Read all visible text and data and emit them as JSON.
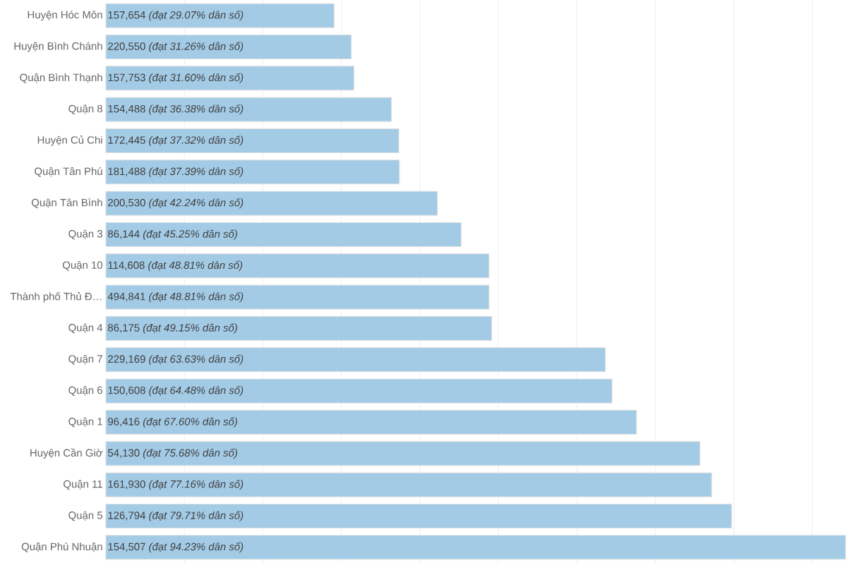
{
  "chart_data": {
    "type": "bar",
    "orientation": "horizontal",
    "color": "#a3cbe6",
    "grid": "x",
    "tick_labels": "y",
    "xlim": [
      0,
      94.23
    ],
    "xticks": [
      {
        "value": 10,
        "label": null
      },
      {
        "value": 20,
        "label": null
      },
      {
        "value": 30,
        "label": null
      },
      {
        "value": 40,
        "label": null
      },
      {
        "value": 50,
        "label": null
      },
      {
        "value": 60,
        "label": null
      },
      {
        "value": 70,
        "label": null
      },
      {
        "value": 80,
        "label": null
      },
      {
        "value": 90,
        "label": null
      }
    ],
    "categories": [
      "Huyện Hóc Môn",
      "Huyện Bình Chánh",
      "Quận Bình Thạnh",
      "Quận 8",
      "Huyện Củ Chi",
      "Quận Tân Phú",
      "Quận Tân Bình",
      "Quận 3",
      "Quận 10",
      "Thành phố Thủ Đ…",
      "Quận 4",
      "Quận 7",
      "Quận 6",
      "Quận 1",
      "Huyện Cần Giờ",
      "Quận 11",
      "Quận 5",
      "Quận Phú Nhuận"
    ],
    "values": [
      29.07,
      31.26,
      31.6,
      36.38,
      37.32,
      37.39,
      42.24,
      45.25,
      48.81,
      48.81,
      49.15,
      63.63,
      64.48,
      67.6,
      75.68,
      77.16,
      79.71,
      94.23
    ],
    "value_labels": [
      "157,654 *(đạt 29.07% dân số)*",
      "220,550 *(đạt 31.26% dân số)*",
      "157,753 *(đạt 31.60% dân số)*",
      "154,488 *(đạt 36.38% dân số)*",
      "172,445 *(đạt 37.32% dân số)*",
      "181,488 *(đạt 37.39% dân số)*",
      "200,530 *(đạt 42.24% dân số)*",
      "86,144 *(đạt 45.25% dân số)*",
      "114,608 *(đạt 48.81% dân số)*",
      "494,841 *(đạt 48.81% dân số)*",
      "86,175 *(đạt 49.15% dân số)*",
      "229,169 *(đạt 63.63% dân số)*",
      "150,608 *(đạt 64.48% dân số)*",
      "96,416 *(đạt 67.60% dân số)*",
      "54,130 *(đạt 75.68% dân số)*",
      "161,930 *(đạt 77.16% dân số)*",
      "126,794 *(đạt 79.71% dân số)*",
      "154,507 *(đạt 94.23% dân số)*"
    ]
  }
}
